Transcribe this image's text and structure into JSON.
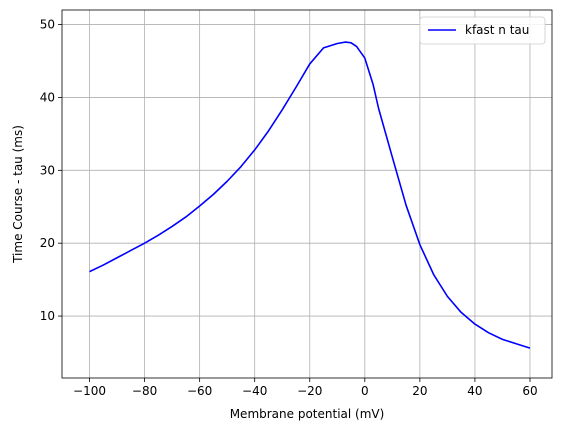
{
  "chart_data": {
    "type": "line",
    "title": "",
    "xlabel": "Membrane potential (mV)",
    "ylabel": "Time Course - tau (ms)",
    "xlim": [
      -110,
      68
    ],
    "ylim": [
      1.5,
      52
    ],
    "xticks": [
      -100,
      -80,
      -60,
      -40,
      -20,
      0,
      20,
      40,
      60
    ],
    "yticks": [
      10,
      20,
      30,
      40,
      50
    ],
    "grid": true,
    "legend_position": "top-right",
    "series": [
      {
        "name": "kfast n tau",
        "color": "#0000ff",
        "x": [
          -100,
          -95,
          -90,
          -85,
          -80,
          -75,
          -70,
          -65,
          -60,
          -55,
          -50,
          -45,
          -40,
          -35,
          -30,
          -25,
          -20,
          -15,
          -10,
          -7,
          -5,
          -3,
          0,
          3,
          5,
          10,
          15,
          20,
          25,
          30,
          35,
          40,
          45,
          50,
          55,
          60
        ],
        "y": [
          16.1,
          17.0,
          18.0,
          19.0,
          20.0,
          21.1,
          22.3,
          23.6,
          25.1,
          26.7,
          28.5,
          30.5,
          32.8,
          35.4,
          38.3,
          41.4,
          44.6,
          46.8,
          47.4,
          47.6,
          47.5,
          47.0,
          45.4,
          41.8,
          38.5,
          31.8,
          25.2,
          19.8,
          15.7,
          12.7,
          10.5,
          8.9,
          7.7,
          6.8,
          6.2,
          5.6
        ]
      }
    ]
  }
}
